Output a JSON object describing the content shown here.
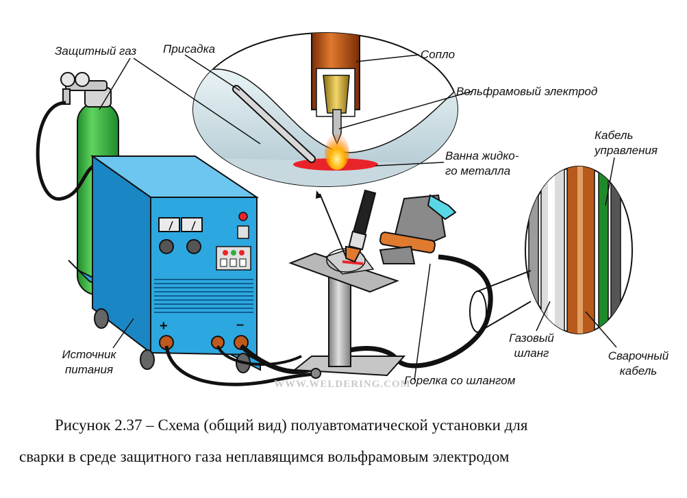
{
  "labels": {
    "shield_gas": "Защитный газ",
    "filler": "Присадка",
    "nozzle": "Сопло",
    "tungsten_electrode": "Вольфрамовый электрод",
    "pool_line1": "Ванна жидко-",
    "pool_line2": "го металла",
    "control_cable_line1": "Кабель",
    "control_cable_line2": "управления",
    "gas_hose_line1": "Газовый",
    "gas_hose_line2": "шланг",
    "welding_cable_line1": "Сварочный",
    "welding_cable_line2": "кабель",
    "power_source_line1": "Источник",
    "power_source_line2": "питания",
    "torch_with_hose": "Горелка со шлангом",
    "plus": "+",
    "minus": "–"
  },
  "watermark": "WWW.WELDERING.COM",
  "caption": {
    "line1": "Рисунок 2.37 – Схема (общий вид) полуавтоматической установки  для",
    "line2": "сварки в среде защитного газа неплавящимся  вольфрамовым электродом"
  },
  "colors": {
    "cabinet_front": "#2da7e0",
    "cabinet_side": "#1b86c4",
    "cylinder": "#2fae3c",
    "nozzle": "#c0591d",
    "pool": "#e8242a",
    "hose": "#111111",
    "glove": "#7a7a7a"
  }
}
